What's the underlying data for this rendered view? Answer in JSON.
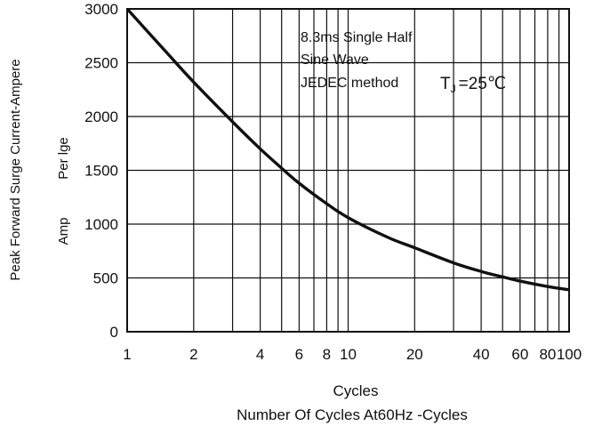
{
  "chart_data": {
    "type": "line",
    "x_scale": "log",
    "xlim": [
      1,
      100
    ],
    "ylim": [
      0,
      3000
    ],
    "x_ticks": [
      {
        "value": 1,
        "label": "1"
      },
      {
        "value": 2,
        "label": "2"
      },
      {
        "value": 4,
        "label": "4"
      },
      {
        "value": 6,
        "label": "6"
      },
      {
        "value": 8,
        "label": "8"
      },
      {
        "value": 10,
        "label": "10"
      },
      {
        "value": 20,
        "label": "20"
      },
      {
        "value": 40,
        "label": "40"
      },
      {
        "value": 60,
        "label": "60"
      },
      {
        "value": 80,
        "label": "80"
      },
      {
        "value": 100,
        "label": "100"
      }
    ],
    "x_gridlines": [
      1,
      2,
      3,
      4,
      5,
      6,
      7,
      8,
      9,
      10,
      20,
      30,
      40,
      50,
      60,
      70,
      80,
      90,
      100
    ],
    "y_ticks": [
      0,
      500,
      1000,
      1500,
      2000,
      2500,
      3000
    ],
    "grid": true,
    "series": [
      {
        "x": [
          1,
          1.5,
          2,
          3,
          4,
          5,
          6,
          8,
          10,
          15,
          20,
          30,
          40,
          50,
          60,
          80,
          100
        ],
        "y": [
          3000,
          2600,
          2320,
          1950,
          1700,
          1520,
          1380,
          1190,
          1060,
          880,
          780,
          640,
          560,
          510,
          470,
          420,
          390
        ]
      }
    ],
    "annotation": {
      "line1": "8.3ms Single Half",
      "line2": "Sine Wave",
      "line3": "JEDEC method",
      "tj_symbol": "T",
      "tj_sub": "J",
      "tj_value": "=25℃"
    },
    "ylabel": {
      "outer": "Peak Forward Surge Current-Ampere",
      "middle": "Per lge",
      "inner": "Amp"
    },
    "xlabel": {
      "line1": "Cycles",
      "line2": "Number Of Cycles  At60Hz -Cycles"
    }
  }
}
